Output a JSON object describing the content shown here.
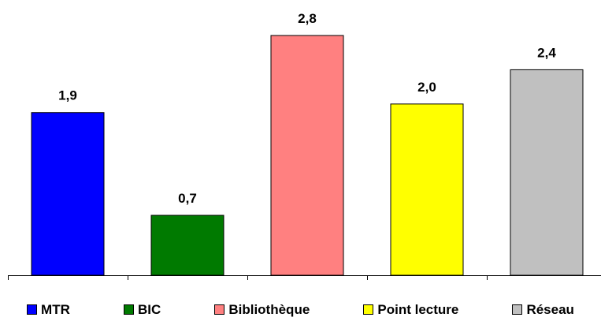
{
  "chart_data": {
    "type": "bar",
    "categories": [
      "MTR",
      "BIC",
      "Bibliothèque",
      "Point lecture",
      "Réseau"
    ],
    "values": [
      1.9,
      0.7,
      2.8,
      2.0,
      2.4
    ],
    "value_labels": [
      "1,9",
      "0,7",
      "2,8",
      "2,0",
      "2,4"
    ],
    "colors": [
      "#0000ff",
      "#007a00",
      "#ff8080",
      "#ffff00",
      "#c0c0c0"
    ],
    "title": "",
    "xlabel": "",
    "ylabel": "",
    "ylim": [
      0,
      3
    ],
    "grid": false,
    "legend_position": "bottom"
  }
}
